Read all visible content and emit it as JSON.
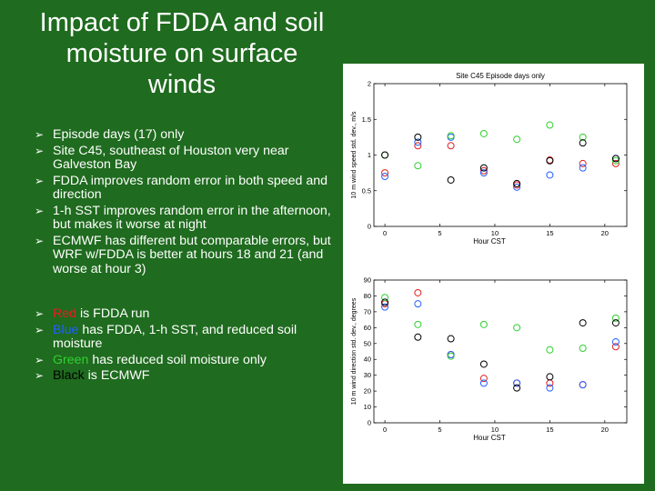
{
  "slide": {
    "title": "Impact of FDDA and soil moisture on surface winds",
    "bullets": [
      "Episode days (17) only",
      "Site C45, southeast of Houston very near Galveston Bay",
      "FDDA improves random error in both speed and direction",
      "1-h SST improves random error in the afternoon, but makes it worse at night",
      "ECMWF has different but comparable errors, but WRF w/FDDA is better at hours 18 and 21 (and worse at hour 3)"
    ],
    "legend_bullets": [
      {
        "color_word": "Red",
        "rest": " is FDDA run",
        "color": "#e02020"
      },
      {
        "color_word": "Blue",
        "rest": " has FDDA, 1-h SST, and reduced soil moisture",
        "color": "#2060ff"
      },
      {
        "color_word": "Green",
        "rest": " has reduced soil moisture only",
        "color": "#30d030"
      },
      {
        "color_word": "Black",
        "rest": " is ECMWF",
        "color": "#000000"
      }
    ]
  },
  "chart_data": [
    {
      "type": "scatter",
      "title": "Site C45 Episode days only",
      "xlabel": "Hour CST",
      "ylabel": "10 m wind speed std. dev., m/s",
      "xlim": [
        -1,
        22
      ],
      "ylim": [
        0,
        2
      ],
      "xticks": [
        0,
        5,
        10,
        15,
        20
      ],
      "yticks": [
        0,
        0.5,
        1,
        1.5,
        2
      ],
      "ytick_labels": [
        "0",
        "0.5",
        "1",
        "1.5",
        "2"
      ],
      "series": [
        {
          "color": "#e02020",
          "x": [
            0,
            3,
            6,
            9,
            12,
            15,
            18,
            21
          ],
          "y": [
            0.75,
            1.13,
            1.13,
            0.78,
            0.58,
            0.93,
            0.88,
            0.88
          ]
        },
        {
          "color": "#2060ff",
          "x": [
            0,
            3,
            6,
            9,
            12,
            15,
            18,
            21
          ],
          "y": [
            0.7,
            1.18,
            1.25,
            0.75,
            0.55,
            0.72,
            0.82,
            0.95
          ]
        },
        {
          "color": "#30d030",
          "x": [
            0,
            3,
            6,
            9,
            12,
            15,
            18,
            21
          ],
          "y": [
            1.0,
            0.85,
            1.27,
            1.3,
            1.22,
            1.42,
            1.25,
            0.92
          ]
        },
        {
          "color": "#000000",
          "x": [
            0,
            3,
            6,
            9,
            12,
            15,
            18,
            21
          ],
          "y": [
            1.0,
            1.25,
            0.65,
            0.82,
            0.6,
            0.92,
            1.17,
            0.95
          ]
        }
      ]
    },
    {
      "type": "scatter",
      "title": "",
      "xlabel": "Hour CST",
      "ylabel": "10 m wind direction std. dev., degrees",
      "xlim": [
        -1,
        22
      ],
      "ylim": [
        0,
        90
      ],
      "xticks": [
        0,
        5,
        10,
        15,
        20
      ],
      "yticks": [
        0,
        10,
        20,
        30,
        40,
        50,
        60,
        70,
        80,
        90
      ],
      "ytick_labels": [
        "0",
        "10",
        "20",
        "30",
        "40",
        "50",
        "60",
        "70",
        "80",
        "90"
      ],
      "series": [
        {
          "color": "#e02020",
          "x": [
            0,
            3,
            6,
            9,
            12,
            15,
            18,
            21
          ],
          "y": [
            75,
            82,
            43,
            28,
            25,
            25,
            24,
            48
          ]
        },
        {
          "color": "#2060ff",
          "x": [
            0,
            3,
            6,
            9,
            12,
            15,
            18,
            21
          ],
          "y": [
            73,
            75,
            43,
            25,
            25,
            22,
            24,
            51
          ]
        },
        {
          "color": "#30d030",
          "x": [
            0,
            3,
            6,
            9,
            12,
            15,
            18,
            21
          ],
          "y": [
            79,
            62,
            42,
            62,
            60,
            46,
            47,
            66
          ]
        },
        {
          "color": "#000000",
          "x": [
            0,
            3,
            6,
            9,
            12,
            15,
            18,
            21
          ],
          "y": [
            76,
            54,
            53,
            37,
            22,
            29,
            63,
            63
          ]
        }
      ]
    }
  ]
}
